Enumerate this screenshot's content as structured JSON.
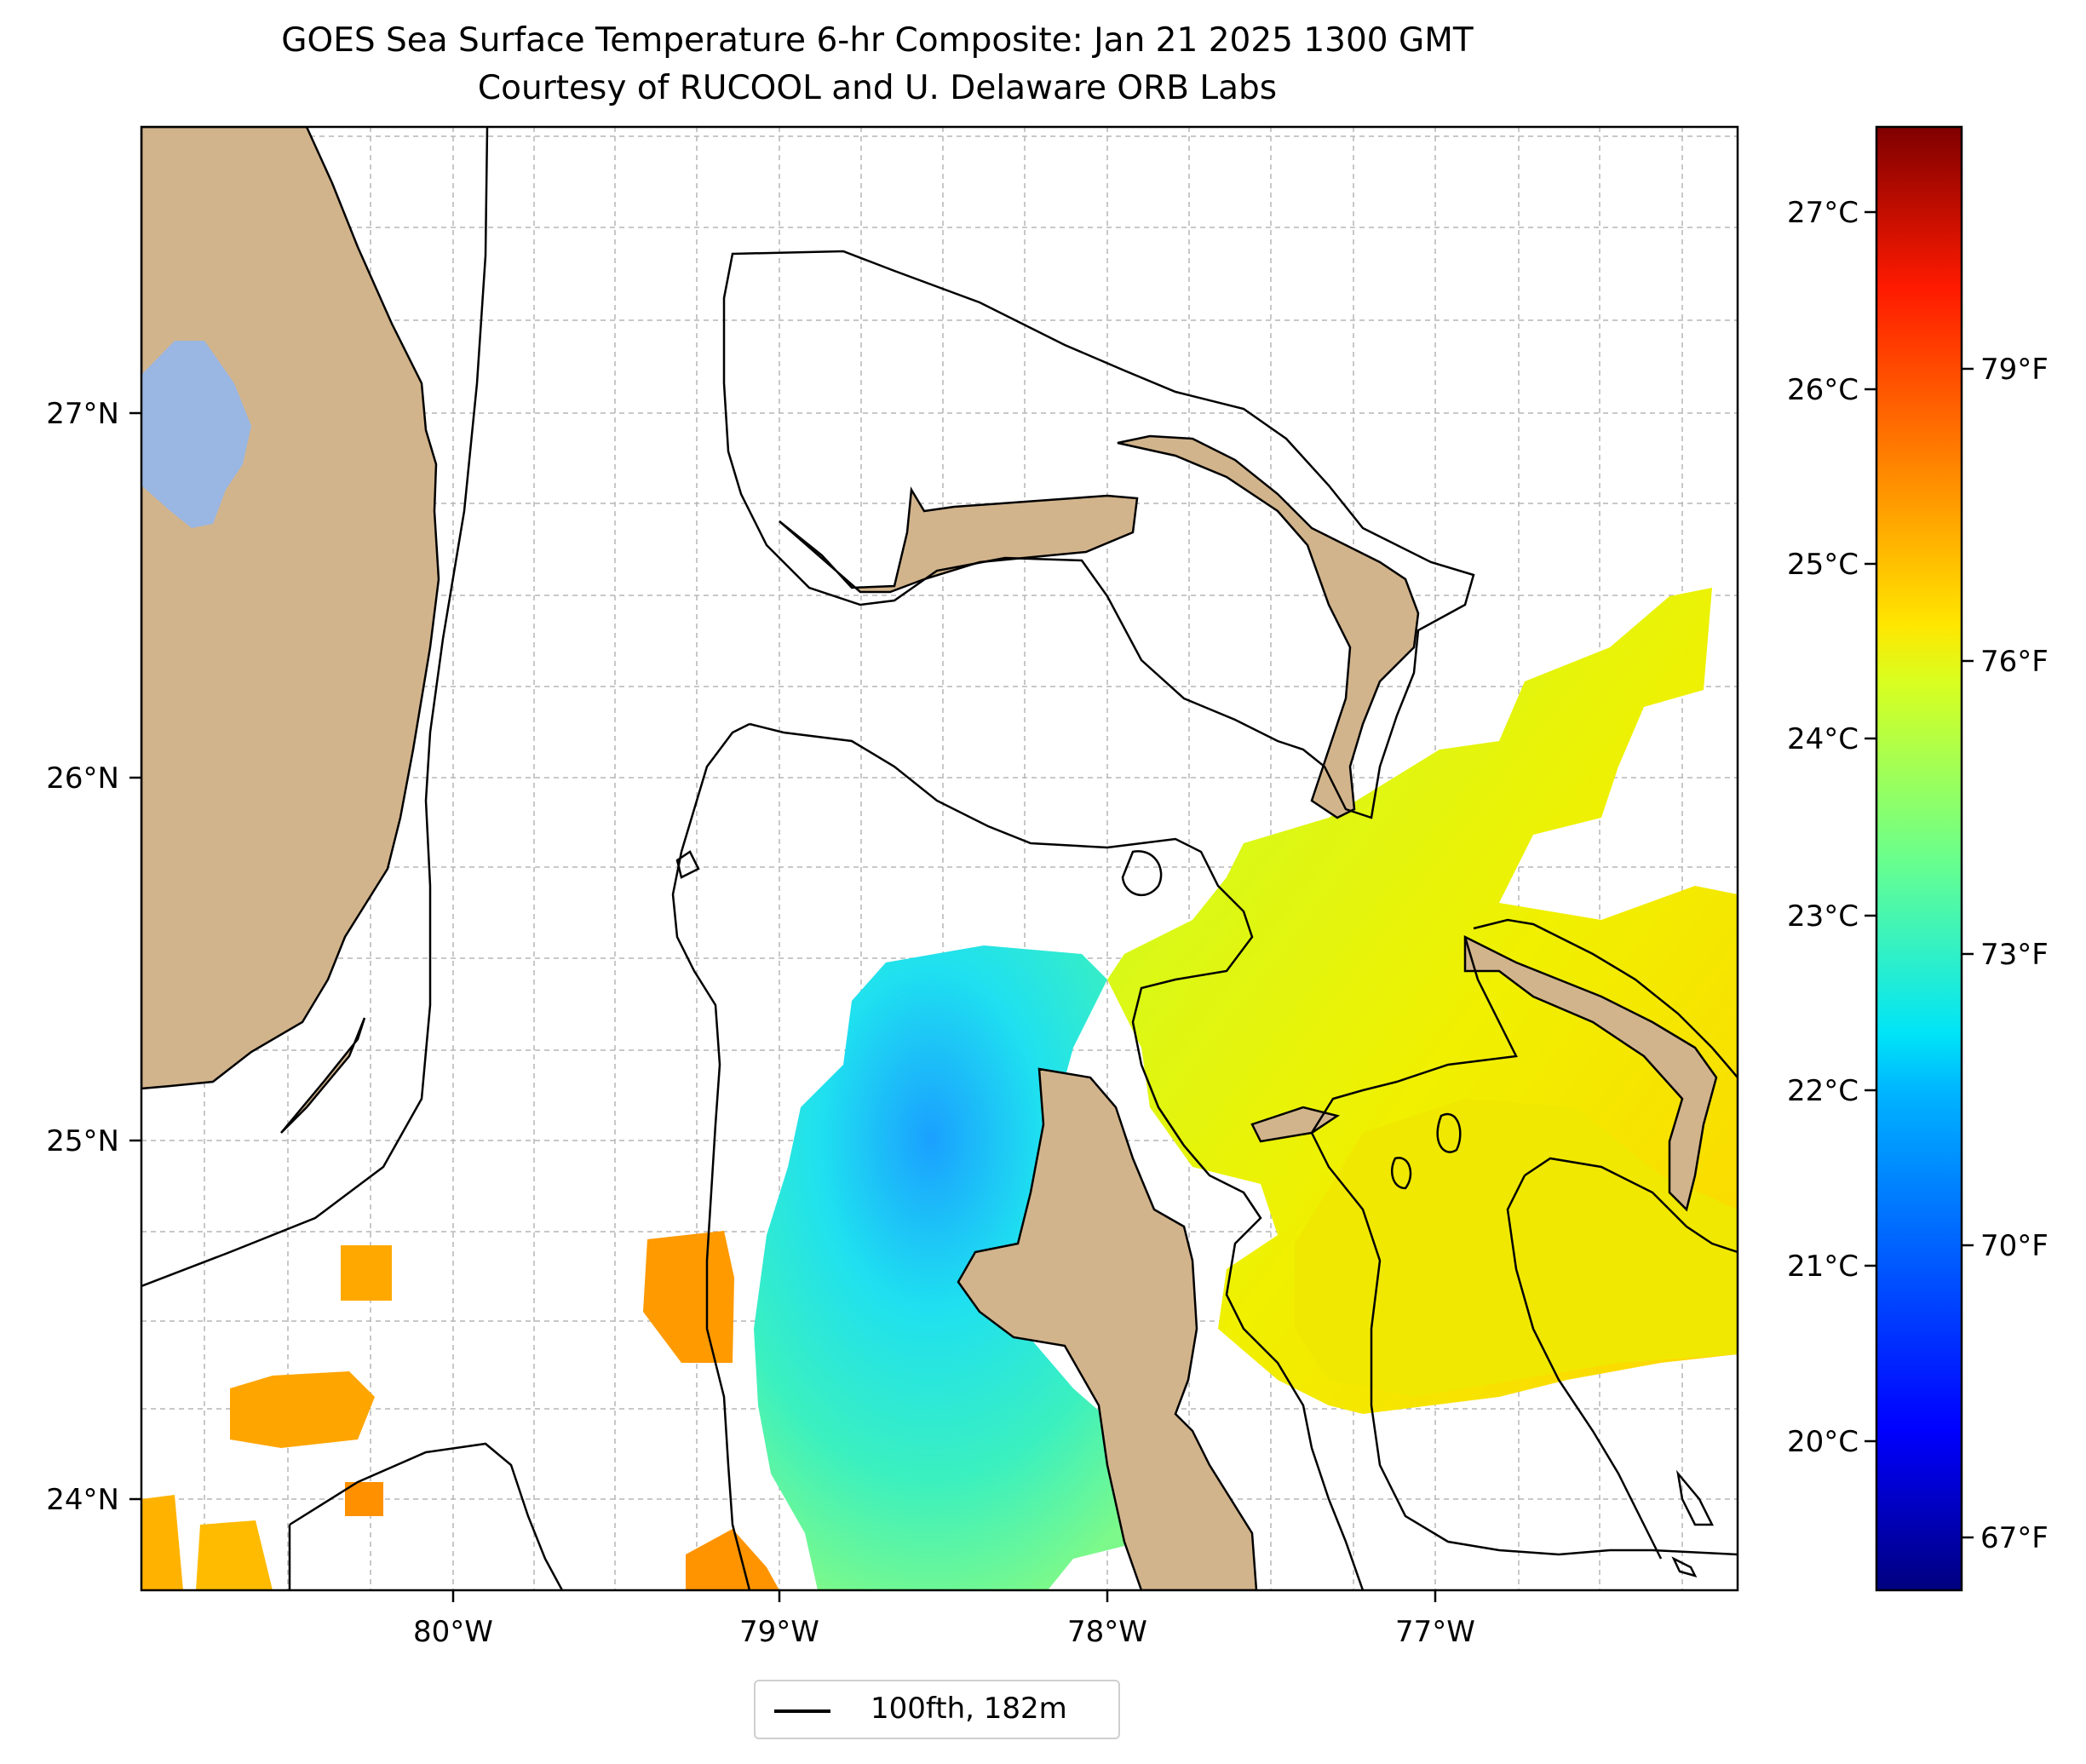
{
  "title": "GOES Sea Surface Temperature 6-hr Composite: Jan 21 2025 1300 GMT",
  "subtitle": "Courtesy of RUCOOL and U. Delaware ORB Labs",
  "map": {
    "lat_labels": [
      "27°N",
      "26°N",
      "25°N",
      "24°N"
    ],
    "lon_labels": [
      "80°W",
      "79°W",
      "78°W",
      "77°W"
    ],
    "extent": {
      "lon_min": -80.96,
      "lon_max": -76.16,
      "lat_min": 23.73,
      "lat_max": 27.79
    },
    "colors": {
      "land": "#d2b48c",
      "lake": "#9ab6e2",
      "grid": "#b0b0b0",
      "contour": "#000000"
    }
  },
  "colorbar": {
    "celsius_labels": [
      "27°C",
      "26°C",
      "25°C",
      "24°C",
      "23°C",
      "22°C",
      "21°C",
      "20°C"
    ],
    "fahrenheit_labels": [
      "79°F",
      "76°F",
      "73°F",
      "70°F",
      "67°F"
    ],
    "colormap": "jet",
    "range_celsius": [
      19.3,
      27.5
    ]
  },
  "legend": {
    "label": "100fth, 182m"
  }
}
